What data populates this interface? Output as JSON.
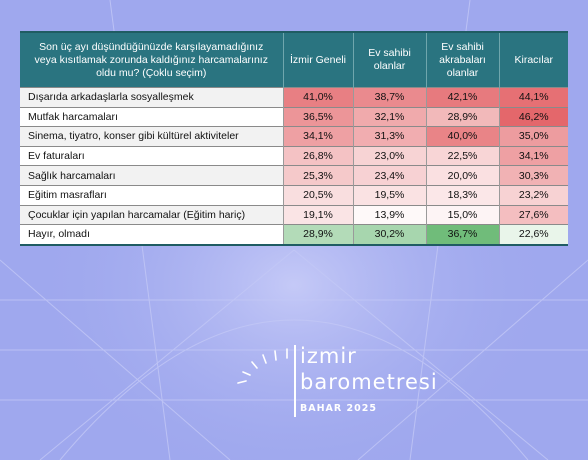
{
  "chart_data": {
    "type": "table",
    "header": {
      "question": "Son üç ayı düşündüğünüzde karşılayamadığınız veya kısıtlamak zorunda kaldığınız harcamalarınız oldu mu? (Çoklu seçim)",
      "columns": [
        "İzmir Geneli",
        "Ev sahibi olanlar",
        "Ev sahibi akrabaları olanlar",
        "Kiracılar"
      ]
    },
    "rows": [
      {
        "label": "Dışarıda arkadaşlarla sosyalleşmek",
        "values": [
          "41,0%",
          "38,7%",
          "42,1%",
          "44,1%"
        ],
        "nums": [
          41.0,
          38.7,
          42.1,
          44.1
        ]
      },
      {
        "label": "Mutfak harcamaları",
        "values": [
          "36,5%",
          "32,1%",
          "28,9%",
          "46,2%"
        ],
        "nums": [
          36.5,
          32.1,
          28.9,
          46.2
        ]
      },
      {
        "label": "Sinema, tiyatro, konser gibi kültürel aktiviteler",
        "values": [
          "34,1%",
          "31,3%",
          "40,0%",
          "35,0%"
        ],
        "nums": [
          34.1,
          31.3,
          40.0,
          35.0
        ]
      },
      {
        "label": "Ev faturaları",
        "values": [
          "26,8%",
          "23,0%",
          "22,5%",
          "34,1%"
        ],
        "nums": [
          26.8,
          23.0,
          22.5,
          34.1
        ]
      },
      {
        "label": "Sağlık harcamaları",
        "values": [
          "25,3%",
          "23,4%",
          "20,0%",
          "30,3%"
        ],
        "nums": [
          25.3,
          23.4,
          20.0,
          30.3
        ]
      },
      {
        "label": "Eğitim masrafları",
        "values": [
          "20,5%",
          "19,5%",
          "18,3%",
          "23,2%"
        ],
        "nums": [
          20.5,
          19.5,
          18.3,
          23.2
        ]
      },
      {
        "label": "Çocuklar için yapılan harcamalar (Eğitim hariç)",
        "values": [
          "19,1%",
          "13,9%",
          "15,0%",
          "27,6%"
        ],
        "nums": [
          19.1,
          13.9,
          15.0,
          27.6
        ]
      },
      {
        "label": "Hayır, olmadı",
        "values": [
          "28,9%",
          "30,2%",
          "36,7%",
          "22,6%"
        ],
        "nums": [
          28.9,
          30.2,
          36.7,
          22.6
        ],
        "scale": "green"
      }
    ],
    "colors": {
      "header_bg": "#2a7480",
      "red_high": "#e4676b",
      "green_high": "#6dbb78",
      "page_bg": "#9fa8ee"
    }
  },
  "brand": {
    "line1": "izmir",
    "line2": "barometresi",
    "season": "BAHAR 2025"
  }
}
